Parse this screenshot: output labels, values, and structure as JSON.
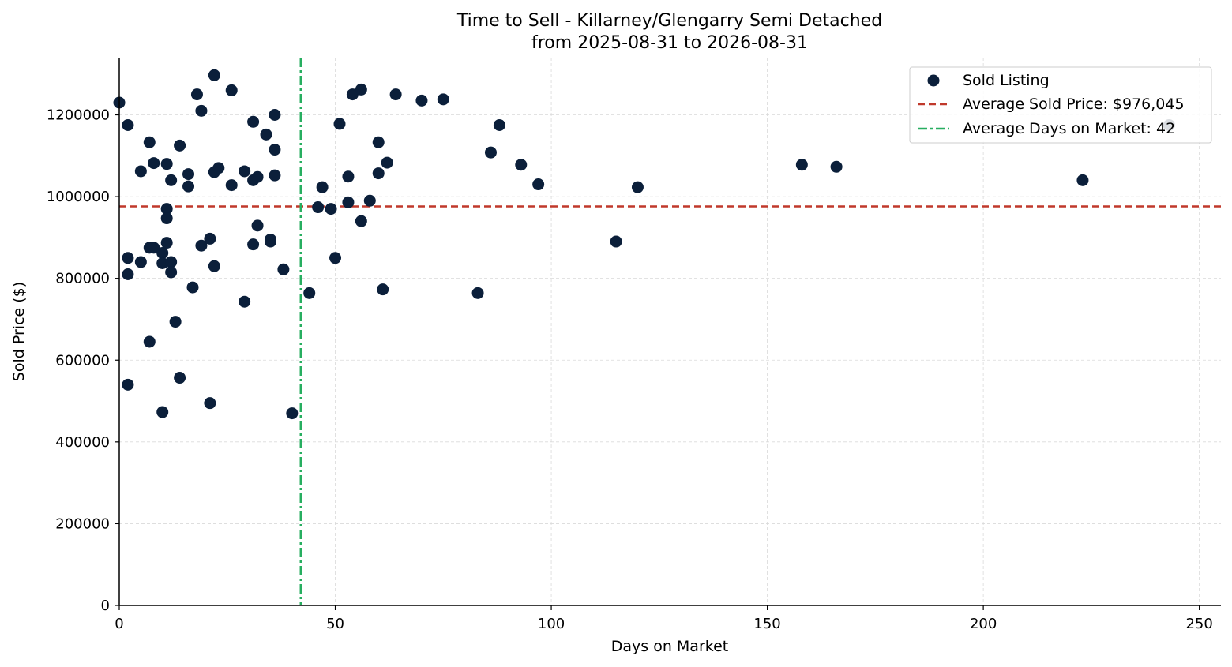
{
  "chart_data": {
    "type": "scatter",
    "title": "Time to Sell - Killarney/Glengarry Semi Detached",
    "subtitle": "from 2025-08-31 to 2026-08-31",
    "xlabel": "Days on Market",
    "ylabel": "Sold Price ($)",
    "xlim": [
      0,
      255
    ],
    "ylim": [
      0,
      1340000
    ],
    "xticks": [
      0,
      50,
      100,
      150,
      200,
      250
    ],
    "yticks": [
      0,
      200000,
      400000,
      600000,
      800000,
      1000000,
      1200000
    ],
    "xtick_labels": [
      "0",
      "50",
      "100",
      "150",
      "200",
      "250"
    ],
    "ytick_labels": [
      "0",
      "200000",
      "400000",
      "600000",
      "800000",
      "1000000",
      "1200000"
    ],
    "grid": true,
    "legend_position": "top-right",
    "legend": [
      {
        "label": "Sold Listing",
        "style": "marker"
      },
      {
        "label": "Average Sold Price: $976,045",
        "style": "dashed"
      },
      {
        "label": "Average Days on Market: 42",
        "style": "dashdot"
      }
    ],
    "colors": {
      "points": "#0b1f3a",
      "avg_price": "#c0392b",
      "avg_days": "#27ae60"
    },
    "avg_price": 976045,
    "avg_days": 42,
    "series": [
      {
        "name": "Sold Listing",
        "points": [
          [
            0,
            1230000
          ],
          [
            2,
            1175000
          ],
          [
            2,
            850000
          ],
          [
            2,
            810000
          ],
          [
            2,
            540000
          ],
          [
            5,
            1062000
          ],
          [
            5,
            840000
          ],
          [
            7,
            1133000
          ],
          [
            7,
            875000
          ],
          [
            7,
            645000
          ],
          [
            8,
            1082000
          ],
          [
            8,
            875000
          ],
          [
            10,
            862000
          ],
          [
            10,
            837000
          ],
          [
            10,
            473000
          ],
          [
            11,
            1080000
          ],
          [
            11,
            970000
          ],
          [
            11,
            947000
          ],
          [
            11,
            887000
          ],
          [
            12,
            1040000
          ],
          [
            12,
            840000
          ],
          [
            12,
            815000
          ],
          [
            13,
            694000
          ],
          [
            14,
            1125000
          ],
          [
            14,
            557000
          ],
          [
            16,
            1055000
          ],
          [
            16,
            1025000
          ],
          [
            17,
            778000
          ],
          [
            18,
            1250000
          ],
          [
            19,
            1210000
          ],
          [
            19,
            880000
          ],
          [
            21,
            897000
          ],
          [
            21,
            495000
          ],
          [
            22,
            1297000
          ],
          [
            22,
            1060000
          ],
          [
            22,
            830000
          ],
          [
            23,
            1070000
          ],
          [
            26,
            1260000
          ],
          [
            26,
            1028000
          ],
          [
            29,
            1062000
          ],
          [
            29,
            743000
          ],
          [
            31,
            1183000
          ],
          [
            31,
            1040000
          ],
          [
            31,
            883000
          ],
          [
            32,
            1048000
          ],
          [
            32,
            929000
          ],
          [
            34,
            1152000
          ],
          [
            35,
            895000
          ],
          [
            35,
            890000
          ],
          [
            36,
            1200000
          ],
          [
            36,
            1115000
          ],
          [
            36,
            1052000
          ],
          [
            38,
            822000
          ],
          [
            40,
            470000
          ],
          [
            44,
            764000
          ],
          [
            46,
            974000
          ],
          [
            47,
            1023000
          ],
          [
            49,
            970000
          ],
          [
            50,
            850000
          ],
          [
            51,
            1178000
          ],
          [
            53,
            1049000
          ],
          [
            53,
            986000
          ],
          [
            54,
            1250000
          ],
          [
            56,
            1262000
          ],
          [
            56,
            940000
          ],
          [
            58,
            990000
          ],
          [
            60,
            1133000
          ],
          [
            60,
            1057000
          ],
          [
            61,
            773000
          ],
          [
            62,
            1083000
          ],
          [
            64,
            1250000
          ],
          [
            70,
            1235000
          ],
          [
            75,
            1238000
          ],
          [
            83,
            764000
          ],
          [
            86,
            1108000
          ],
          [
            88,
            1175000
          ],
          [
            93,
            1078000
          ],
          [
            97,
            1030000
          ],
          [
            115,
            890000
          ],
          [
            120,
            1023000
          ],
          [
            158,
            1078000
          ],
          [
            166,
            1073000
          ],
          [
            223,
            1040000
          ],
          [
            243,
            1175000
          ]
        ]
      }
    ]
  }
}
